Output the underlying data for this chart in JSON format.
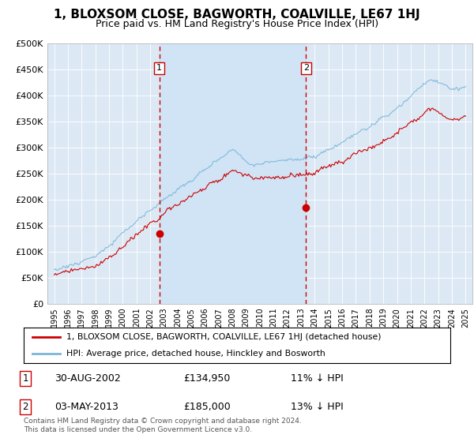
{
  "title": "1, BLOXSOM CLOSE, BAGWORTH, COALVILLE, LE67 1HJ",
  "subtitle": "Price paid vs. HM Land Registry's House Price Index (HPI)",
  "bg_color": "#dce9f5",
  "shade_color": "#d0e4f5",
  "sale1": {
    "date": "30-AUG-2002",
    "price": 134950,
    "label": "11% ↓ HPI",
    "x": 2002.66
  },
  "sale2": {
    "date": "03-MAY-2013",
    "price": 185000,
    "label": "13% ↓ HPI",
    "x": 2013.37
  },
  "legend_line1": "1, BLOXSOM CLOSE, BAGWORTH, COALVILLE, LE67 1HJ (detached house)",
  "legend_line2": "HPI: Average price, detached house, Hinckley and Bosworth",
  "footer1": "Contains HM Land Registry data © Crown copyright and database right 2024.",
  "footer2": "This data is licensed under the Open Government Licence v3.0.",
  "hpi_color": "#7ab5d8",
  "price_color": "#cc0000",
  "vline_color": "#cc0000",
  "ylim": [
    0,
    500000
  ],
  "yticks": [
    0,
    50000,
    100000,
    150000,
    200000,
    250000,
    300000,
    350000,
    400000,
    450000,
    500000
  ],
  "xlim": [
    1994.5,
    2025.5
  ],
  "xticks": [
    1995,
    1996,
    1997,
    1998,
    1999,
    2000,
    2001,
    2002,
    2003,
    2004,
    2005,
    2006,
    2007,
    2008,
    2009,
    2010,
    2011,
    2012,
    2013,
    2014,
    2015,
    2016,
    2017,
    2018,
    2019,
    2020,
    2021,
    2022,
    2023,
    2024,
    2025
  ]
}
